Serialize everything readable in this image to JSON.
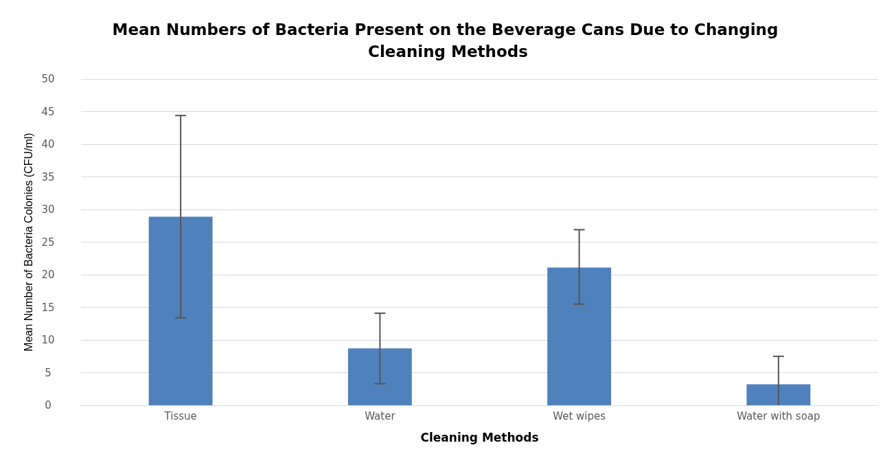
{
  "chart_data": {
    "type": "bar",
    "title": "Mean Numbers of Bacteria Present on the Beverage Cans Due to Changing Cleaning Methods",
    "xlabel": "Cleaning Methods",
    "ylabel": "Mean Number of Bacteria Colonies (CFU/ml)",
    "categories": [
      "Tissue",
      "Water",
      "Wet wipes",
      "Water with soap"
    ],
    "values": [
      28.9,
      8.7,
      21.1,
      3.2
    ],
    "errors": [
      [
        13.4,
        44.4
      ],
      [
        3.3,
        14.1
      ],
      [
        15.5,
        26.9
      ],
      [
        0,
        7.5
      ]
    ],
    "color": "#4f81bd",
    "ylim": [
      0,
      50
    ],
    "yticks": [
      0,
      5,
      10,
      15,
      20,
      25,
      30,
      35,
      40,
      45,
      50
    ],
    "grid": "y"
  }
}
